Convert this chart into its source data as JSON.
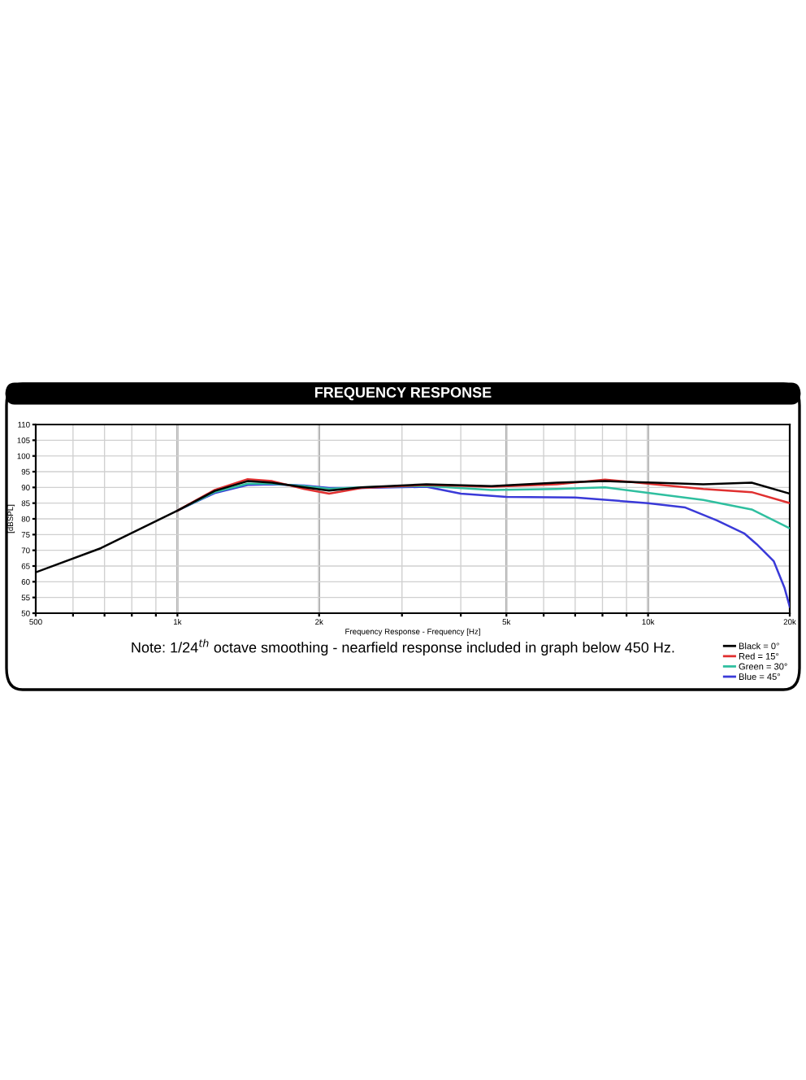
{
  "chart_data": {
    "type": "line",
    "title": "FREQUENCY RESPONSE",
    "xlabel": "Frequency Response - Frequency [Hz]",
    "ylabel": "[dBSPL]",
    "log": "x",
    "xlim": [
      500,
      20000
    ],
    "ylim": [
      50,
      110
    ],
    "xticks": [
      500,
      {
        "value": 600,
        "label": null
      },
      {
        "value": 700,
        "label": null
      },
      {
        "value": 800,
        "label": null
      },
      {
        "value": 900,
        "label": null
      },
      {
        "value": 1000,
        "label": "1k"
      },
      {
        "value": 2000,
        "label": "2k"
      },
      {
        "value": 3000,
        "label": null
      },
      {
        "value": 4000,
        "label": null
      },
      {
        "value": 5000,
        "label": "5k"
      },
      {
        "value": 6000,
        "label": null
      },
      {
        "value": 7000,
        "label": null
      },
      {
        "value": 8000,
        "label": null
      },
      {
        "value": 9000,
        "label": null
      },
      {
        "value": 10000,
        "label": "10k"
      },
      {
        "value": 20000,
        "label": "20k"
      }
    ],
    "yticks": [
      50,
      55,
      60,
      65,
      70,
      75,
      80,
      85,
      90,
      95,
      100,
      105,
      110
    ],
    "grid": true,
    "legend": "bottom right",
    "line_style": "solid",
    "marker": "none",
    "annotations": [
      "Note: 1/24$^{th}$ octave smoothing - nearfield response included in graph below 450 Hz."
    ],
    "series": [
      {
        "name": "Black = 0°",
        "color": "#000000",
        "x": [
          500,
          688,
          1000,
          1200,
          1410,
          1590,
          1860,
          2100,
          2460,
          3380,
          4650,
          6400,
          8100,
          10300,
          13100,
          16600,
          20000
        ],
        "values": [
          63,
          70.7,
          82.6,
          88.9,
          92,
          91.5,
          90,
          89,
          90,
          91,
          90.4,
          91.5,
          92,
          91.5,
          91,
          91.5,
          88
        ]
      },
      {
        "name": "Red = 15°",
        "color": "#e03030",
        "x": [
          1000,
          1200,
          1410,
          1590,
          1860,
          2100,
          2460,
          3380,
          4650,
          6400,
          8100,
          10300,
          13100,
          16600,
          20000
        ],
        "values": [
          82.6,
          89.2,
          92.6,
          92,
          89.5,
          88,
          89.8,
          90.8,
          90.2,
          91,
          92.5,
          91,
          89.5,
          88.5,
          85
        ]
      },
      {
        "name": "Green = 30°",
        "color": "#2fbf9f",
        "x": [
          1000,
          1200,
          1410,
          1590,
          1860,
          2100,
          2460,
          3380,
          4650,
          6400,
          8100,
          10300,
          13100,
          16600,
          20000
        ],
        "values": [
          82.6,
          88.5,
          91.2,
          91.2,
          90.4,
          89.6,
          90,
          90.5,
          89.2,
          89.5,
          90,
          88,
          86,
          83,
          77
        ]
      },
      {
        "name": "Blue = 45°",
        "color": "#3a3ad8",
        "x": [
          1000,
          1200,
          1410,
          1590,
          1860,
          2100,
          2460,
          3380,
          4000,
          5000,
          7000,
          10000,
          12000,
          14000,
          16000,
          17000,
          18500,
          19500,
          20000
        ],
        "values": [
          82.6,
          88.2,
          90.8,
          91,
          90.6,
          89.8,
          89.8,
          90.2,
          88,
          87,
          86.8,
          85,
          83.6,
          79.5,
          75.4,
          72,
          66.5,
          58,
          52
        ]
      }
    ]
  }
}
